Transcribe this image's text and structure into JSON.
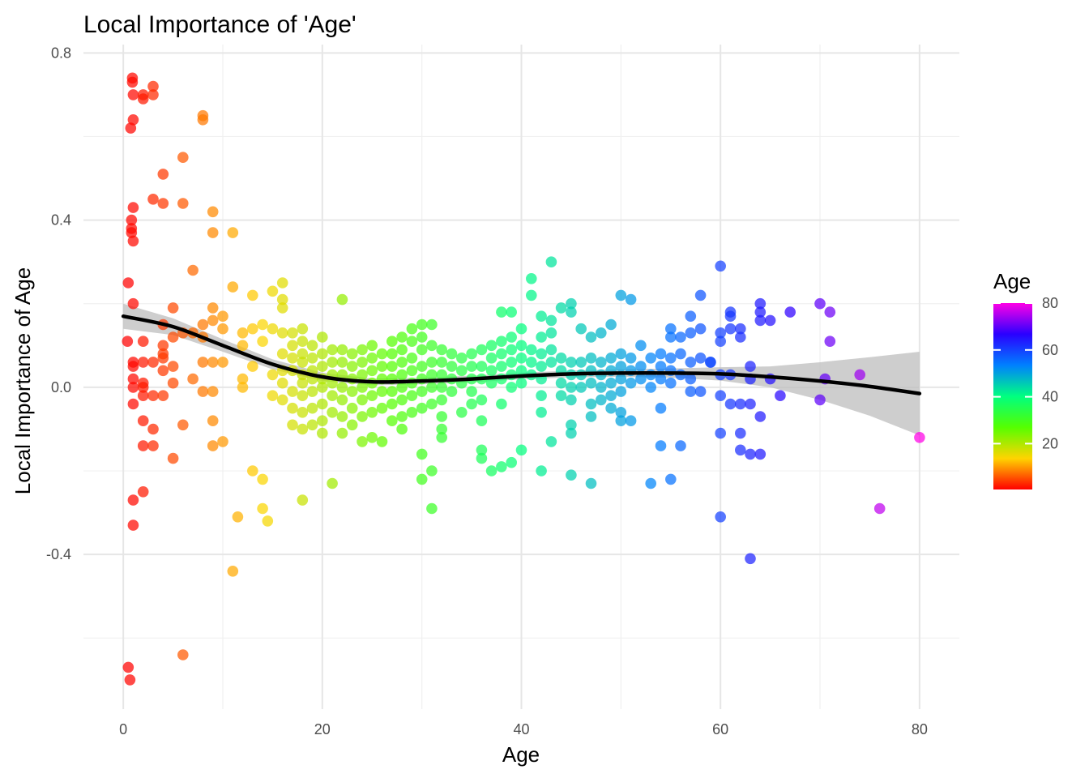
{
  "chart_data": {
    "type": "scatter",
    "title": "Local Importance of 'Age'",
    "xlabel": "Age",
    "ylabel": "Local Importance of Age",
    "xlim": [
      -4,
      84
    ],
    "ylim": [
      -0.77,
      0.82
    ],
    "x_ticks": [
      0,
      20,
      40,
      60,
      80
    ],
    "y_ticks": [
      0.8,
      0.4,
      0.0,
      -0.4
    ],
    "x_tick_labels": [
      "0",
      "20",
      "40",
      "60",
      "80"
    ],
    "y_tick_labels": [
      "0.8",
      "0.4",
      "0.0",
      "-0.4"
    ],
    "grid": true,
    "legend": {
      "title": "Age",
      "placement": "right",
      "type": "colorbar",
      "range": [
        0.42,
        80
      ],
      "ticks": [
        20,
        40,
        60,
        80
      ],
      "tick_labels": [
        "20",
        "40",
        "60",
        "80"
      ],
      "colors": [
        "#FF0000",
        "#FFD400",
        "#55FF00",
        "#00FF80",
        "#0080FF",
        "#2A00FF",
        "#FF00E6"
      ]
    },
    "smooth_line": {
      "color": "#000000",
      "ci_color": "#bdbdbd",
      "x": [
        0,
        5,
        10,
        15,
        20,
        25,
        30,
        35,
        40,
        45,
        50,
        55,
        60,
        65,
        70,
        75,
        80
      ],
      "y": [
        0.17,
        0.145,
        0.1,
        0.055,
        0.025,
        0.013,
        0.015,
        0.02,
        0.027,
        0.032,
        0.034,
        0.034,
        0.032,
        0.025,
        0.015,
        0.002,
        -0.015
      ],
      "ci_half_width": [
        0.03,
        0.02,
        0.015,
        0.012,
        0.01,
        0.008,
        0.008,
        0.008,
        0.008,
        0.008,
        0.009,
        0.011,
        0.016,
        0.025,
        0.045,
        0.07,
        0.1
      ]
    },
    "points": [
      [
        0.42,
        0.11
      ],
      [
        0.5,
        0.25
      ],
      [
        0.5,
        -0.67
      ],
      [
        0.67,
        -0.7
      ],
      [
        0.75,
        0.62
      ],
      [
        0.83,
        0.38
      ],
      [
        0.83,
        0.4
      ],
      [
        0.83,
        0.37
      ],
      [
        0.92,
        0.73
      ],
      [
        0.92,
        0.74
      ],
      [
        1,
        0.7
      ],
      [
        1,
        0.35
      ],
      [
        1,
        0.2
      ],
      [
        1,
        0.06
      ],
      [
        1,
        0.05
      ],
      [
        1,
        0.02
      ],
      [
        1,
        -0.04
      ],
      [
        1,
        -0.27
      ],
      [
        1,
        -0.33
      ],
      [
        1,
        0.64
      ],
      [
        1,
        0.43
      ],
      [
        1,
        0
      ],
      [
        2,
        0.7
      ],
      [
        2,
        0.69
      ],
      [
        2,
        0.11
      ],
      [
        2,
        0.06
      ],
      [
        2,
        0.01
      ],
      [
        2,
        0
      ],
      [
        2,
        -0.02
      ],
      [
        2,
        -0.08
      ],
      [
        2,
        -0.14
      ],
      [
        2,
        -0.25
      ],
      [
        3,
        0.72
      ],
      [
        3,
        0.7
      ],
      [
        3,
        0.45
      ],
      [
        3,
        0.06
      ],
      [
        3,
        -0.02
      ],
      [
        3,
        -0.1
      ],
      [
        3,
        -0.14
      ],
      [
        4,
        0.51
      ],
      [
        4,
        0.44
      ],
      [
        4,
        0.15
      ],
      [
        4,
        0.1
      ],
      [
        4,
        0.08
      ],
      [
        4,
        0.07
      ],
      [
        4,
        0.04
      ],
      [
        4,
        -0.02
      ],
      [
        5,
        0.19
      ],
      [
        5,
        0.12
      ],
      [
        5,
        0.05
      ],
      [
        5,
        0.01
      ],
      [
        5,
        -0.17
      ],
      [
        6,
        0.55
      ],
      [
        6,
        0.44
      ],
      [
        6,
        0.13
      ],
      [
        6,
        -0.09
      ],
      [
        6,
        -0.64
      ],
      [
        7,
        0.28
      ],
      [
        7,
        0.13
      ],
      [
        7,
        0.02
      ],
      [
        8,
        0.65
      ],
      [
        8,
        0.64
      ],
      [
        8,
        0.15
      ],
      [
        8,
        0.12
      ],
      [
        8,
        0.06
      ],
      [
        8,
        -0.01
      ],
      [
        9,
        0.42
      ],
      [
        9,
        0.37
      ],
      [
        9,
        0.19
      ],
      [
        9,
        0.16
      ],
      [
        9,
        0.06
      ],
      [
        9,
        -0.01
      ],
      [
        9,
        -0.08
      ],
      [
        9,
        -0.14
      ],
      [
        10,
        0.17
      ],
      [
        10,
        0.14
      ],
      [
        10,
        0.06
      ],
      [
        10,
        -0.13
      ],
      [
        11,
        0.37
      ],
      [
        11,
        0.24
      ],
      [
        11,
        -0.44
      ],
      [
        11.5,
        -0.31
      ],
      [
        12,
        0.13
      ],
      [
        12,
        0.1
      ],
      [
        12,
        0.02
      ],
      [
        12,
        0
      ],
      [
        13,
        0.22
      ],
      [
        13,
        0.14
      ],
      [
        13,
        0.05
      ],
      [
        13,
        -0.2
      ],
      [
        14,
        0.15
      ],
      [
        14,
        0.11
      ],
      [
        14,
        -0.22
      ],
      [
        14,
        -0.29
      ],
      [
        14.5,
        -0.32
      ],
      [
        15,
        0.23
      ],
      [
        15,
        0.14
      ],
      [
        15,
        0.03
      ],
      [
        15,
        -0.02
      ],
      [
        16,
        0.25
      ],
      [
        16,
        0.21
      ],
      [
        16,
        0.19
      ],
      [
        16,
        0.13
      ],
      [
        16,
        0.08
      ],
      [
        16,
        0.04
      ],
      [
        16,
        0.01
      ],
      [
        16,
        -0.03
      ],
      [
        17,
        0.13
      ],
      [
        17,
        0.1
      ],
      [
        17,
        0.07
      ],
      [
        17,
        0.04
      ],
      [
        17,
        -0.01
      ],
      [
        17,
        -0.05
      ],
      [
        17,
        -0.09
      ],
      [
        18,
        0.14
      ],
      [
        18,
        0.11
      ],
      [
        18,
        0.08
      ],
      [
        18,
        0.06
      ],
      [
        18,
        0.03
      ],
      [
        18,
        0.01
      ],
      [
        18,
        -0.02
      ],
      [
        18,
        -0.06
      ],
      [
        18,
        -0.1
      ],
      [
        18,
        -0.27
      ],
      [
        19,
        0.1
      ],
      [
        19,
        0.07
      ],
      [
        19,
        0.04
      ],
      [
        19,
        0.02
      ],
      [
        19,
        -0.01
      ],
      [
        19,
        -0.05
      ],
      [
        19,
        -0.09
      ],
      [
        20,
        0.12
      ],
      [
        20,
        0.08
      ],
      [
        20,
        0.05
      ],
      [
        20,
        0.02
      ],
      [
        20,
        0
      ],
      [
        20,
        -0.04
      ],
      [
        20,
        -0.08
      ],
      [
        20,
        -0.11
      ],
      [
        21,
        0.09
      ],
      [
        21,
        0.06
      ],
      [
        21,
        0.03
      ],
      [
        21,
        0.01
      ],
      [
        21,
        -0.02
      ],
      [
        21,
        -0.06
      ],
      [
        21,
        -0.23
      ],
      [
        22,
        0.21
      ],
      [
        22,
        0.09
      ],
      [
        22,
        0.06
      ],
      [
        22,
        0.03
      ],
      [
        22,
        0
      ],
      [
        22,
        -0.03
      ],
      [
        22,
        -0.07
      ],
      [
        22,
        -0.11
      ],
      [
        23,
        0.08
      ],
      [
        23,
        0.05
      ],
      [
        23,
        0.02
      ],
      [
        23,
        -0.01
      ],
      [
        23,
        -0.05
      ],
      [
        23,
        -0.09
      ],
      [
        24,
        0.09
      ],
      [
        24,
        0.06
      ],
      [
        24,
        0.03
      ],
      [
        24,
        0
      ],
      [
        24,
        -0.03
      ],
      [
        24,
        -0.07
      ],
      [
        24,
        -0.13
      ],
      [
        25,
        0.1
      ],
      [
        25,
        0.07
      ],
      [
        25,
        0.04
      ],
      [
        25,
        0.01
      ],
      [
        25,
        -0.02
      ],
      [
        25,
        -0.06
      ],
      [
        25,
        -0.12
      ],
      [
        26,
        0.08
      ],
      [
        26,
        0.05
      ],
      [
        26,
        0.02
      ],
      [
        26,
        -0.01
      ],
      [
        26,
        -0.05
      ],
      [
        26,
        -0.13
      ],
      [
        27,
        0.11
      ],
      [
        27,
        0.08
      ],
      [
        27,
        0.05
      ],
      [
        27,
        0.02
      ],
      [
        27,
        -0.01
      ],
      [
        27,
        -0.04
      ],
      [
        27,
        -0.08
      ],
      [
        28,
        0.12
      ],
      [
        28,
        0.09
      ],
      [
        28,
        0.06
      ],
      [
        28,
        0.03
      ],
      [
        28,
        0
      ],
      [
        28,
        -0.03
      ],
      [
        28,
        -0.07
      ],
      [
        28,
        -0.1
      ],
      [
        29,
        0.14
      ],
      [
        29,
        0.11
      ],
      [
        29,
        0.07
      ],
      [
        29,
        0.04
      ],
      [
        29,
        0.01
      ],
      [
        29,
        -0.02
      ],
      [
        29,
        -0.06
      ],
      [
        30,
        0.15
      ],
      [
        30,
        0.12
      ],
      [
        30,
        0.09
      ],
      [
        30,
        0.05
      ],
      [
        30,
        0.02
      ],
      [
        30,
        -0.01
      ],
      [
        30,
        -0.05
      ],
      [
        30,
        -0.16
      ],
      [
        30,
        -0.22
      ],
      [
        31,
        0.15
      ],
      [
        31,
        0.1
      ],
      [
        31,
        0.06
      ],
      [
        31,
        0.03
      ],
      [
        31,
        0
      ],
      [
        31,
        -0.04
      ],
      [
        31,
        -0.2
      ],
      [
        31,
        -0.29
      ],
      [
        32,
        0.09
      ],
      [
        32,
        0.06
      ],
      [
        32,
        0.03
      ],
      [
        32,
        0
      ],
      [
        32,
        -0.03
      ],
      [
        32,
        -0.07
      ],
      [
        32,
        -0.1
      ],
      [
        32,
        -0.12
      ],
      [
        33,
        0.08
      ],
      [
        33,
        0.05
      ],
      [
        33,
        0.02
      ],
      [
        33,
        -0.01
      ],
      [
        34,
        0.07
      ],
      [
        34,
        0.04
      ],
      [
        34,
        0.01
      ],
      [
        34,
        -0.06
      ],
      [
        35,
        0.08
      ],
      [
        35,
        0.05
      ],
      [
        35,
        0.02
      ],
      [
        35,
        -0.01
      ],
      [
        35,
        -0.04
      ],
      [
        36,
        0.09
      ],
      [
        36,
        0.05
      ],
      [
        36,
        0.02
      ],
      [
        36,
        -0.03
      ],
      [
        36,
        -0.08
      ],
      [
        36,
        -0.15
      ],
      [
        36,
        -0.17
      ],
      [
        37,
        0.1
      ],
      [
        37,
        0.07
      ],
      [
        37,
        0.04
      ],
      [
        37,
        0.01
      ],
      [
        37,
        -0.2
      ],
      [
        38,
        0.18
      ],
      [
        38,
        0.11
      ],
      [
        38,
        0.08
      ],
      [
        38,
        0.05
      ],
      [
        38,
        0.02
      ],
      [
        38,
        -0.04
      ],
      [
        38,
        -0.19
      ],
      [
        39,
        0.18
      ],
      [
        39,
        0.12
      ],
      [
        39,
        0.09
      ],
      [
        39,
        0.06
      ],
      [
        39,
        0.03
      ],
      [
        39,
        0
      ],
      [
        39,
        -0.18
      ],
      [
        40,
        0.14
      ],
      [
        40,
        0.1
      ],
      [
        40,
        0.07
      ],
      [
        40,
        0.04
      ],
      [
        40,
        0.01
      ],
      [
        40,
        -0.15
      ],
      [
        41,
        0.26
      ],
      [
        41,
        0.22
      ],
      [
        41,
        0.09
      ],
      [
        41,
        0.06
      ],
      [
        41,
        0.03
      ],
      [
        42,
        0.17
      ],
      [
        42,
        0.12
      ],
      [
        42,
        0.08
      ],
      [
        42,
        0.05
      ],
      [
        42,
        0.02
      ],
      [
        42,
        -0.02
      ],
      [
        42,
        -0.06
      ],
      [
        42,
        -0.2
      ],
      [
        43,
        0.3
      ],
      [
        43,
        0.16
      ],
      [
        43,
        0.13
      ],
      [
        43,
        0.09
      ],
      [
        43,
        0.06
      ],
      [
        43,
        -0.13
      ],
      [
        44,
        0.19
      ],
      [
        44,
        0.07
      ],
      [
        44,
        0.04
      ],
      [
        44,
        0.01
      ],
      [
        44,
        -0.02
      ],
      [
        45,
        0.2
      ],
      [
        45,
        0.18
      ],
      [
        45,
        0.06
      ],
      [
        45,
        0.03
      ],
      [
        45,
        0
      ],
      [
        45,
        -0.03
      ],
      [
        45,
        -0.09
      ],
      [
        45,
        -0.11
      ],
      [
        45,
        -0.21
      ],
      [
        46,
        0.14
      ],
      [
        46,
        0.06
      ],
      [
        46,
        0.03
      ],
      [
        46,
        0
      ],
      [
        47,
        0.12
      ],
      [
        47,
        0.07
      ],
      [
        47,
        0.04
      ],
      [
        47,
        0.01
      ],
      [
        47,
        -0.04
      ],
      [
        47,
        -0.07
      ],
      [
        47,
        -0.23
      ],
      [
        48,
        0.13
      ],
      [
        48,
        0.06
      ],
      [
        48,
        0.03
      ],
      [
        48,
        0
      ],
      [
        48,
        -0.03
      ],
      [
        49,
        0.15
      ],
      [
        49,
        0.07
      ],
      [
        49,
        0.04
      ],
      [
        49,
        0.01
      ],
      [
        49,
        -0.02
      ],
      [
        49,
        -0.05
      ],
      [
        50,
        0.22
      ],
      [
        50,
        0.08
      ],
      [
        50,
        0.05
      ],
      [
        50,
        0.02
      ],
      [
        50,
        -0.01
      ],
      [
        50,
        -0.06
      ],
      [
        50,
        -0.08
      ],
      [
        51,
        0.21
      ],
      [
        51,
        0.07
      ],
      [
        51,
        0.04
      ],
      [
        51,
        0.01
      ],
      [
        51,
        -0.08
      ],
      [
        52,
        0.1
      ],
      [
        52,
        0.05
      ],
      [
        52,
        0.02
      ],
      [
        53,
        0.07
      ],
      [
        53,
        0.03
      ],
      [
        53,
        0
      ],
      [
        53,
        -0.23
      ],
      [
        54,
        0.08
      ],
      [
        54,
        0.05
      ],
      [
        54,
        0.02
      ],
      [
        54,
        -0.05
      ],
      [
        54,
        -0.14
      ],
      [
        55,
        0.14
      ],
      [
        55,
        0.12
      ],
      [
        55,
        0.07
      ],
      [
        55,
        0.04
      ],
      [
        55,
        0.01
      ],
      [
        55,
        -0.22
      ],
      [
        56,
        0.12
      ],
      [
        56,
        0.08
      ],
      [
        56,
        0.03
      ],
      [
        56,
        -0.14
      ],
      [
        57,
        0.17
      ],
      [
        57,
        0.13
      ],
      [
        57,
        0.06
      ],
      [
        57,
        0.02
      ],
      [
        57,
        -0.01
      ],
      [
        58,
        0.22
      ],
      [
        58,
        0.14
      ],
      [
        58,
        0.07
      ],
      [
        58,
        -0.01
      ],
      [
        59,
        0.06
      ],
      [
        59,
        0.06
      ],
      [
        60,
        0.29
      ],
      [
        60,
        0.13
      ],
      [
        60,
        0.11
      ],
      [
        60,
        0.03
      ],
      [
        60,
        -0.02
      ],
      [
        60,
        -0.11
      ],
      [
        60,
        -0.31
      ],
      [
        61,
        0.18
      ],
      [
        61,
        0.17
      ],
      [
        61,
        0.14
      ],
      [
        61,
        0.03
      ],
      [
        61,
        -0.04
      ],
      [
        62,
        0.14
      ],
      [
        62,
        0.12
      ],
      [
        62,
        -0.04
      ],
      [
        62,
        -0.11
      ],
      [
        62,
        -0.15
      ],
      [
        63,
        0.05
      ],
      [
        63,
        0.02
      ],
      [
        63,
        -0.04
      ],
      [
        63,
        -0.16
      ],
      [
        63,
        -0.41
      ],
      [
        64,
        0.2
      ],
      [
        64,
        0.18
      ],
      [
        64,
        0.16
      ],
      [
        64,
        -0.07
      ],
      [
        64,
        -0.16
      ],
      [
        65,
        0.16
      ],
      [
        65,
        0.02
      ],
      [
        66,
        -0.02
      ],
      [
        67,
        0.18
      ],
      [
        70,
        0.2
      ],
      [
        70,
        -0.03
      ],
      [
        70.5,
        0.02
      ],
      [
        71,
        0.18
      ],
      [
        71,
        0.11
      ],
      [
        74,
        0.03
      ],
      [
        76,
        -0.29
      ],
      [
        80,
        -0.12
      ]
    ]
  }
}
